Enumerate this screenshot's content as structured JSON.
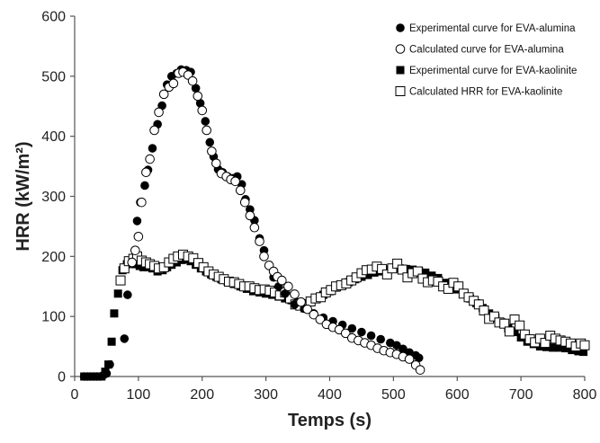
{
  "chart_data": {
    "type": "scatter",
    "xlabel": "Temps (s)",
    "ylabel": "HRR (kW/m²)",
    "xlim": [
      0,
      800
    ],
    "ylim": [
      0,
      600
    ],
    "xticks": [
      0,
      100,
      200,
      300,
      400,
      500,
      600,
      700,
      800
    ],
    "yticks": [
      0,
      100,
      200,
      300,
      400,
      500,
      600
    ],
    "grid": false,
    "legend_position": "top-right",
    "series": [
      {
        "name": "Experimental curve for EVA-alumina",
        "marker": "filled-circle",
        "color": "#000000",
        "points": [
          [
            15,
            0
          ],
          [
            20,
            0
          ],
          [
            25,
            0
          ],
          [
            30,
            0
          ],
          [
            35,
            0
          ],
          [
            40,
            0
          ],
          [
            45,
            2
          ],
          [
            50,
            5
          ],
          [
            55,
            20
          ],
          [
            78,
            63
          ],
          [
            83,
            136
          ],
          [
            90,
            190
          ],
          [
            98,
            259
          ],
          [
            103,
            290
          ],
          [
            110,
            318
          ],
          [
            115,
            344
          ],
          [
            122,
            380
          ],
          [
            130,
            420
          ],
          [
            137,
            451
          ],
          [
            145,
            486
          ],
          [
            152,
            500
          ],
          [
            160,
            505
          ],
          [
            167,
            511
          ],
          [
            175,
            510
          ],
          [
            182,
            507
          ],
          [
            190,
            480
          ],
          [
            197,
            455
          ],
          [
            205,
            425
          ],
          [
            212,
            390
          ],
          [
            218,
            366
          ],
          [
            225,
            345
          ],
          [
            232,
            340
          ],
          [
            240,
            333
          ],
          [
            248,
            330
          ],
          [
            255,
            333
          ],
          [
            262,
            320
          ],
          [
            268,
            295
          ],
          [
            275,
            278
          ],
          [
            282,
            260
          ],
          [
            290,
            230
          ],
          [
            297,
            210
          ],
          [
            305,
            185
          ],
          [
            312,
            165
          ],
          [
            320,
            150
          ],
          [
            330,
            138
          ],
          [
            345,
            120
          ],
          [
            360,
            113
          ],
          [
            375,
            105
          ],
          [
            390,
            98
          ],
          [
            405,
            92
          ],
          [
            420,
            86
          ],
          [
            435,
            80
          ],
          [
            450,
            74
          ],
          [
            465,
            68
          ],
          [
            480,
            62
          ],
          [
            495,
            56
          ],
          [
            505,
            52
          ],
          [
            515,
            46
          ],
          [
            525,
            40
          ],
          [
            535,
            35
          ],
          [
            540,
            31
          ]
        ]
      },
      {
        "name": "Calculated curve for EVA-alumina",
        "marker": "open-circle",
        "color": "#000000",
        "points": [
          [
            90,
            190
          ],
          [
            95,
            210
          ],
          [
            100,
            233
          ],
          [
            105,
            290
          ],
          [
            112,
            340
          ],
          [
            118,
            362
          ],
          [
            125,
            410
          ],
          [
            132,
            440
          ],
          [
            140,
            470
          ],
          [
            148,
            482
          ],
          [
            155,
            488
          ],
          [
            163,
            505
          ],
          [
            170,
            507
          ],
          [
            178,
            502
          ],
          [
            185,
            492
          ],
          [
            193,
            467
          ],
          [
            200,
            443
          ],
          [
            207,
            410
          ],
          [
            215,
            375
          ],
          [
            222,
            355
          ],
          [
            230,
            338
          ],
          [
            238,
            333
          ],
          [
            245,
            328
          ],
          [
            252,
            325
          ],
          [
            260,
            310
          ],
          [
            267,
            290
          ],
          [
            275,
            268
          ],
          [
            282,
            248
          ],
          [
            290,
            225
          ],
          [
            297,
            200
          ],
          [
            305,
            185
          ],
          [
            312,
            175
          ],
          [
            318,
            166
          ],
          [
            325,
            160
          ],
          [
            335,
            150
          ],
          [
            345,
            137
          ],
          [
            355,
            124
          ],
          [
            365,
            112
          ],
          [
            375,
            103
          ],
          [
            385,
            95
          ],
          [
            395,
            87
          ],
          [
            405,
            82
          ],
          [
            415,
            78
          ],
          [
            425,
            72
          ],
          [
            435,
            64
          ],
          [
            445,
            60
          ],
          [
            455,
            56
          ],
          [
            465,
            52
          ],
          [
            475,
            47
          ],
          [
            485,
            43
          ],
          [
            495,
            40
          ],
          [
            505,
            37
          ],
          [
            515,
            33
          ],
          [
            525,
            29
          ],
          [
            535,
            19
          ],
          [
            542,
            11
          ]
        ]
      },
      {
        "name": "Experimental curve for EVA-kaolinite",
        "marker": "filled-square",
        "color": "#000000",
        "points": [
          [
            15,
            0
          ],
          [
            22,
            0
          ],
          [
            28,
            0
          ],
          [
            35,
            0
          ],
          [
            42,
            0
          ],
          [
            48,
            8
          ],
          [
            53,
            20
          ],
          [
            58,
            58
          ],
          [
            62,
            105
          ],
          [
            68,
            138
          ],
          [
            75,
            177
          ],
          [
            82,
            187
          ],
          [
            88,
            190
          ],
          [
            95,
            187
          ],
          [
            102,
            184
          ],
          [
            108,
            182
          ],
          [
            115,
            182
          ],
          [
            122,
            180
          ],
          [
            130,
            175
          ],
          [
            138,
            177
          ],
          [
            145,
            182
          ],
          [
            152,
            186
          ],
          [
            160,
            190
          ],
          [
            168,
            194
          ],
          [
            175,
            195
          ],
          [
            182,
            192
          ],
          [
            190,
            186
          ],
          [
            198,
            180
          ],
          [
            206,
            175
          ],
          [
            214,
            170
          ],
          [
            222,
            166
          ],
          [
            230,
            162
          ],
          [
            240,
            158
          ],
          [
            250,
            154
          ],
          [
            260,
            150
          ],
          [
            270,
            146
          ],
          [
            280,
            142
          ],
          [
            290,
            140
          ],
          [
            300,
            138
          ],
          [
            310,
            136
          ],
          [
            320,
            133
          ],
          [
            330,
            130
          ],
          [
            340,
            127
          ],
          [
            350,
            124
          ],
          [
            360,
            122
          ],
          [
            370,
            125
          ],
          [
            380,
            130
          ],
          [
            390,
            136
          ],
          [
            400,
            142
          ],
          [
            410,
            148
          ],
          [
            420,
            152
          ],
          [
            430,
            157
          ],
          [
            440,
            162
          ],
          [
            450,
            166
          ],
          [
            460,
            169
          ],
          [
            470,
            173
          ],
          [
            480,
            175
          ],
          [
            490,
            178
          ],
          [
            500,
            180
          ],
          [
            510,
            180
          ],
          [
            520,
            179
          ],
          [
            530,
            178
          ],
          [
            540,
            176
          ],
          [
            550,
            173
          ],
          [
            560,
            168
          ],
          [
            570,
            164
          ],
          [
            580,
            156
          ],
          [
            590,
            150
          ],
          [
            600,
            145
          ],
          [
            610,
            138
          ],
          [
            620,
            130
          ],
          [
            630,
            122
          ],
          [
            640,
            114
          ],
          [
            650,
            105
          ],
          [
            660,
            98
          ],
          [
            670,
            90
          ],
          [
            680,
            80
          ],
          [
            690,
            74
          ],
          [
            700,
            65
          ],
          [
            710,
            58
          ],
          [
            720,
            54
          ],
          [
            730,
            50
          ],
          [
            740,
            49
          ],
          [
            750,
            48
          ],
          [
            760,
            48
          ],
          [
            770,
            47
          ],
          [
            780,
            44
          ],
          [
            790,
            42
          ],
          [
            798,
            41
          ]
        ]
      },
      {
        "name": "Calculated HRR for EVA-kaolinite",
        "marker": "open-square",
        "color": "#000000",
        "points": [
          [
            72,
            160
          ],
          [
            78,
            180
          ],
          [
            85,
            192
          ],
          [
            92,
            196
          ],
          [
            98,
            200
          ],
          [
            105,
            193
          ],
          [
            112,
            190
          ],
          [
            118,
            187
          ],
          [
            125,
            184
          ],
          [
            132,
            180
          ],
          [
            140,
            182
          ],
          [
            148,
            190
          ],
          [
            155,
            196
          ],
          [
            162,
            200
          ],
          [
            170,
            203
          ],
          [
            178,
            200
          ],
          [
            186,
            197
          ],
          [
            194,
            189
          ],
          [
            202,
            182
          ],
          [
            210,
            175
          ],
          [
            218,
            170
          ],
          [
            226,
            166
          ],
          [
            234,
            162
          ],
          [
            242,
            158
          ],
          [
            250,
            157
          ],
          [
            258,
            154
          ],
          [
            266,
            150
          ],
          [
            274,
            150
          ],
          [
            282,
            147
          ],
          [
            290,
            144
          ],
          [
            298,
            145
          ],
          [
            306,
            143
          ],
          [
            314,
            140
          ],
          [
            322,
            135
          ],
          [
            330,
            140
          ],
          [
            338,
            130
          ],
          [
            346,
            120
          ],
          [
            354,
            118
          ],
          [
            362,
            115
          ],
          [
            370,
            125
          ],
          [
            378,
            130
          ],
          [
            386,
            132
          ],
          [
            394,
            140
          ],
          [
            402,
            144
          ],
          [
            410,
            150
          ],
          [
            418,
            152
          ],
          [
            426,
            155
          ],
          [
            434,
            160
          ],
          [
            442,
            165
          ],
          [
            450,
            172
          ],
          [
            458,
            177
          ],
          [
            466,
            178
          ],
          [
            474,
            183
          ],
          [
            482,
            179
          ],
          [
            490,
            170
          ],
          [
            498,
            180
          ],
          [
            506,
            188
          ],
          [
            514,
            178
          ],
          [
            522,
            165
          ],
          [
            530,
            172
          ],
          [
            538,
            175
          ],
          [
            546,
            163
          ],
          [
            554,
            157
          ],
          [
            562,
            160
          ],
          [
            570,
            158
          ],
          [
            578,
            150
          ],
          [
            586,
            146
          ],
          [
            594,
            156
          ],
          [
            602,
            150
          ],
          [
            610,
            138
          ],
          [
            618,
            132
          ],
          [
            626,
            126
          ],
          [
            634,
            120
          ],
          [
            642,
            110
          ],
          [
            650,
            96
          ],
          [
            658,
            100
          ],
          [
            666,
            90
          ],
          [
            674,
            88
          ],
          [
            682,
            75
          ],
          [
            690,
            95
          ],
          [
            698,
            85
          ],
          [
            706,
            70
          ],
          [
            714,
            62
          ],
          [
            722,
            57
          ],
          [
            730,
            63
          ],
          [
            738,
            56
          ],
          [
            746,
            68
          ],
          [
            754,
            63
          ],
          [
            762,
            60
          ],
          [
            770,
            58
          ],
          [
            778,
            55
          ],
          [
            786,
            50
          ],
          [
            794,
            55
          ],
          [
            800,
            52
          ]
        ]
      }
    ]
  }
}
